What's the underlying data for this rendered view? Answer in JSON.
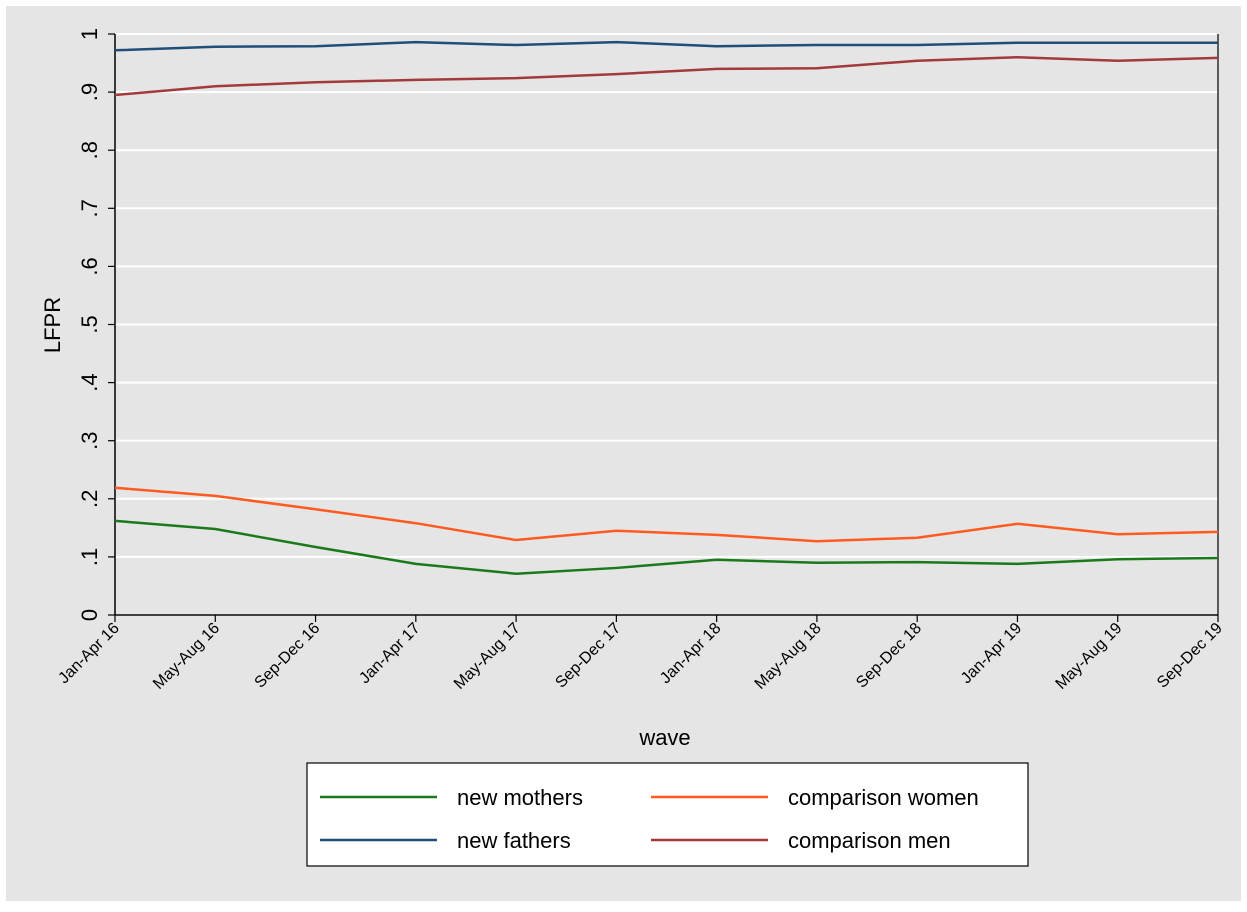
{
  "chart_data": {
    "type": "line",
    "x_label": "wave",
    "y_label": "LFPR",
    "categories": [
      "Jan-Apr 16",
      "May-Aug 16",
      "Sep-Dec 16",
      "Jan-Apr 17",
      "May-Aug 17",
      "Sep-Dec 17",
      "Jan-Apr 18",
      "May-Aug 18",
      "Sep-Dec 18",
      "Jan-Apr 19",
      "May-Aug 19",
      "Sep-Dec 19"
    ],
    "series": [
      {
        "name": "new mothers",
        "color": "#1a7a1a",
        "values": [
          0.162,
          0.148,
          0.117,
          0.088,
          0.071,
          0.081,
          0.095,
          0.09,
          0.091,
          0.088,
          0.096,
          0.098
        ]
      },
      {
        "name": "comparison women",
        "color": "#ff5a1f",
        "values": [
          0.219,
          0.205,
          0.182,
          0.158,
          0.129,
          0.145,
          0.138,
          0.127,
          0.133,
          0.157,
          0.139,
          0.143
        ]
      },
      {
        "name": "new fathers",
        "color": "#1f4e79",
        "values": [
          0.972,
          0.978,
          0.979,
          0.986,
          0.981,
          0.986,
          0.979,
          0.981,
          0.981,
          0.985,
          0.985,
          0.985
        ]
      },
      {
        "name": "comparison men",
        "color": "#a33a3a",
        "values": [
          0.895,
          0.91,
          0.917,
          0.921,
          0.924,
          0.931,
          0.94,
          0.941,
          0.954,
          0.96,
          0.954,
          0.959
        ]
      }
    ],
    "ylim": [
      0,
      1
    ],
    "yticks": [
      0,
      {
        "value": 0.1,
        "label": ".1"
      },
      {
        "value": 0.2,
        "label": ".2"
      },
      {
        "value": 0.3,
        "label": ".3"
      },
      {
        "value": 0.4,
        "label": ".4"
      },
      {
        "value": 0.5,
        "label": ".5"
      },
      {
        "value": 0.6,
        "label": ".6"
      },
      {
        "value": 0.7,
        "label": ".7"
      },
      {
        "value": 0.8,
        "label": ".8"
      },
      {
        "value": 0.9,
        "label": ".9"
      },
      1
    ],
    "grid": true
  }
}
